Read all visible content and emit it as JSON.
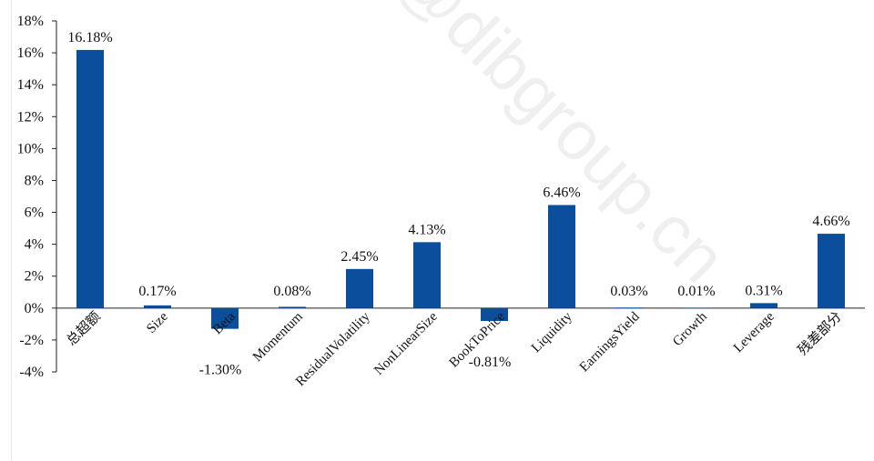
{
  "watermark": "@dibgroup.cn",
  "chart_data": {
    "type": "bar",
    "title": "",
    "xlabel": "",
    "ylabel": "",
    "ylim": [
      -4,
      18
    ],
    "ytick_step": 2,
    "ytick_labels": [
      "-4%",
      "-2%",
      "0%",
      "2%",
      "4%",
      "6%",
      "8%",
      "10%",
      "12%",
      "14%",
      "16%",
      "18%"
    ],
    "categories": [
      "总超额",
      "Size",
      "Beta",
      "Momentum",
      "ResidualVolatility",
      "NonLinearSize",
      "BookToPrice",
      "Liquidity",
      "EarningsYield",
      "Growth",
      "Leverage",
      "残差部分"
    ],
    "values": [
      16.18,
      0.17,
      -1.3,
      0.08,
      2.45,
      4.13,
      -0.81,
      6.46,
      0.03,
      0.01,
      0.31,
      4.66
    ],
    "value_labels": [
      "16.18%",
      "0.17%",
      "-1.30%",
      "0.08%",
      "2.45%",
      "4.13%",
      "-0.81%",
      "6.46%",
      "0.03%",
      "0.01%",
      "0.31%",
      "4.66%"
    ],
    "bar_color": "#0b4f9c",
    "grid": false
  }
}
